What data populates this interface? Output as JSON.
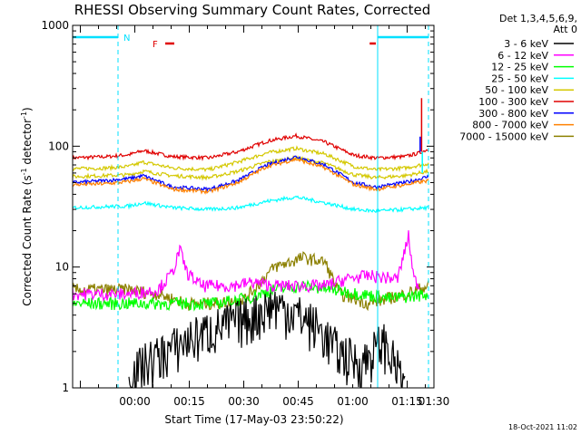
{
  "chart_data": {
    "type": "line",
    "title": "RHESSI Observing Summary Count Rates, Corrected",
    "xlabel": "Start Time (17-May-03 23:50:22)",
    "ylabel_main": "Corrected Count Rate (s",
    "ylabel_sup1": "-1",
    "ylabel_mid": " detector",
    "ylabel_sup2": "-1",
    "ylabel_end": ")",
    "ylog": true,
    "x_unit": "minutes after 17-May-03 23:50:22",
    "xlim": [
      -7.5,
      92
    ],
    "ylim": [
      1,
      1000
    ],
    "x_ticks": [
      {
        "label": "00:00",
        "minute": 9.63
      },
      {
        "label": "00:15",
        "minute": 24.63
      },
      {
        "label": "00:30",
        "minute": 39.63
      },
      {
        "label": "00:45",
        "minute": 54.63
      },
      {
        "label": "01:00",
        "minute": 69.63
      },
      {
        "label": "01:15",
        "minute": 84.63
      },
      {
        "label": "01:30",
        "minute": 99.63
      }
    ],
    "y_ticks": [
      {
        "label": "1",
        "value": 1
      },
      {
        "label": "10",
        "value": 10
      },
      {
        "label": "100",
        "value": 100
      },
      {
        "label": "1000",
        "value": 1000
      }
    ],
    "legend": {
      "header1": "Det 1,3,4,5,6,9,",
      "header2": "Att 0",
      "placement": "right",
      "entries": [
        {
          "label": "3 - 6 keV",
          "color": "#000000"
        },
        {
          "label": "6 - 12 keV",
          "color": "#ff00ff"
        },
        {
          "label": "12 - 25 keV",
          "color": "#00ff00"
        },
        {
          "label": "25 - 50 keV",
          "color": "#00ffff"
        },
        {
          "label": "50 - 100 keV",
          "color": "#d4c800"
        },
        {
          "label": "100 - 300 keV",
          "color": "#e00000"
        },
        {
          "label": "300 - 800 keV",
          "color": "#0000ff"
        },
        {
          "label": "800 - 7000 keV",
          "color": "#ff8000"
        },
        {
          "label": "7000 - 15000 keV",
          "color": "#8c8000"
        }
      ]
    },
    "series": [
      {
        "color": "#e00000",
        "x": [
          -7.5,
          2,
          8,
          12,
          20,
          30,
          38,
          46,
          54,
          62,
          70,
          76,
          84,
          88,
          90.5
        ],
        "y": [
          80,
          82,
          85,
          92,
          82,
          80,
          90,
          110,
          122,
          108,
          84,
          80,
          82,
          88,
          95
        ]
      },
      {
        "color": "#d4c800",
        "x": [
          -7.5,
          2,
          8,
          12,
          20,
          30,
          38,
          46,
          54,
          62,
          70,
          76,
          84,
          90.5
        ],
        "y": [
          65,
          66,
          68,
          74,
          66,
          64,
          74,
          88,
          96,
          86,
          68,
          64,
          66,
          72
        ]
      },
      {
        "color": "#d4c800",
        "x": [
          -7.5,
          8,
          12,
          20,
          30,
          38,
          46,
          54,
          62,
          70,
          76,
          84,
          90.5
        ],
        "y": [
          56,
          58,
          62,
          57,
          55,
          62,
          74,
          80,
          72,
          58,
          55,
          57,
          62
        ]
      },
      {
        "color": "#0000ff",
        "x": [
          -7.5,
          2,
          8,
          12,
          20,
          30,
          38,
          46,
          54,
          62,
          70,
          76,
          84,
          90.5
        ],
        "y": [
          50,
          52,
          54,
          57,
          46,
          44,
          52,
          70,
          82,
          70,
          50,
          46,
          50,
          56
        ]
      },
      {
        "color": "#ff8000",
        "x": [
          -7.5,
          2,
          8,
          12,
          20,
          30,
          38,
          46,
          54,
          62,
          70,
          76,
          84,
          90.5
        ],
        "y": [
          48,
          49,
          51,
          54,
          44,
          42,
          50,
          68,
          78,
          66,
          48,
          44,
          48,
          52
        ]
      },
      {
        "color": "#00ffff",
        "x": [
          -7.5,
          8,
          12,
          20,
          30,
          38,
          46,
          54,
          62,
          70,
          76,
          84,
          90.5
        ],
        "y": [
          31,
          32,
          34,
          31,
          30,
          31,
          35,
          38,
          34,
          30,
          29,
          30,
          31
        ]
      },
      {
        "color": "#8c8000",
        "x": [
          -7.5,
          8,
          16,
          24,
          32,
          40,
          48,
          56,
          62,
          66,
          74,
          84,
          90.5
        ],
        "y": [
          6.5,
          6.5,
          6,
          5,
          5,
          5.5,
          10,
          12,
          11,
          6,
          5,
          6,
          7
        ]
      },
      {
        "color": "#00ff00",
        "x": [
          -7.5,
          8,
          16,
          24,
          32,
          40,
          48,
          56,
          64,
          72,
          80,
          90.5
        ],
        "y": [
          5,
          5,
          5,
          5,
          5,
          5.5,
          6.5,
          7,
          6.5,
          6,
          5.5,
          6
        ]
      },
      {
        "color": "#ff00ff",
        "x": [
          -7.5,
          8,
          16,
          20,
          22,
          24,
          28,
          36,
          42,
          48,
          56,
          62,
          68,
          74,
          82,
          85,
          86.5,
          88
        ],
        "y": [
          6,
          6,
          6.5,
          9,
          14,
          9,
          7,
          7,
          7.5,
          7,
          7,
          7,
          8,
          8.5,
          8,
          18,
          8,
          7
        ]
      },
      {
        "color": "#000000",
        "x": [
          8,
          12,
          18,
          24,
          30,
          36,
          42,
          48,
          54,
          60,
          66,
          72,
          78,
          84
        ],
        "y": [
          1.2,
          1.6,
          2,
          2.5,
          3,
          3.5,
          4,
          5,
          4.2,
          3.2,
          2,
          1.6,
          2.5,
          1.1
        ]
      }
    ],
    "spikes": [
      {
        "color": "#e00000",
        "x": 88.6,
        "y": 250
      },
      {
        "color": "#0000ff",
        "x": 88.2,
        "y": 120
      },
      {
        "color": "#00ffff",
        "x": 88.8,
        "y": 60
      }
    ],
    "night_markers": [
      {
        "label": "N",
        "x_start": -7.5,
        "x_end": 5
      },
      {
        "label": "",
        "x_start": 76.5,
        "x_end": 90.5
      }
    ],
    "flare_marks": [
      {
        "label": "F",
        "x_start": 18,
        "x_end": 20.5
      },
      {
        "label": "",
        "x_start": 74.3,
        "x_end": 76
      }
    ],
    "vlines_dashed": [
      5,
      90.5
    ],
    "vlines_solid": [
      -7.5,
      76.5
    ],
    "footer_date": "18-Oct-2021 11:02",
    "colors": {
      "axis": "#000000",
      "markers": "#00e0ff",
      "flare": "#e00000"
    }
  }
}
